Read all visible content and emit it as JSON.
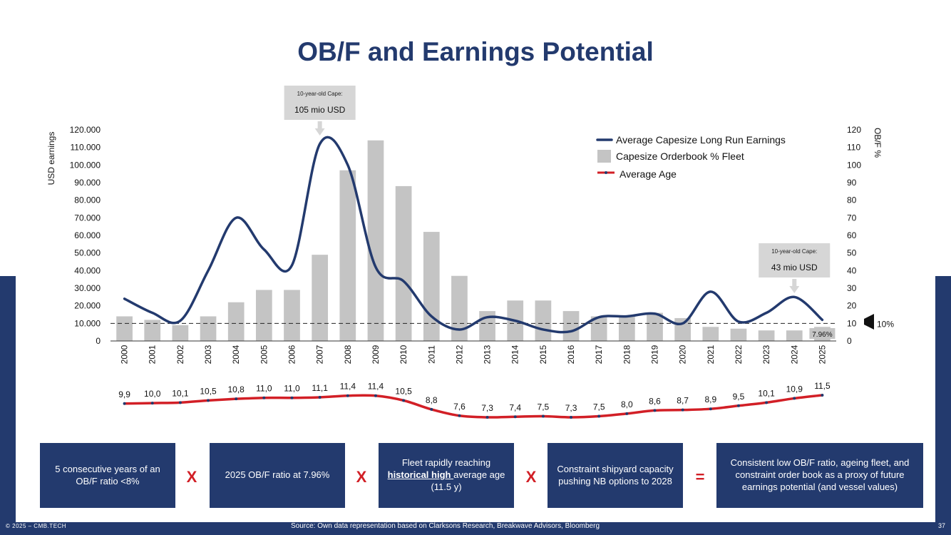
{
  "title": "OB/F and Earnings Potential",
  "colors": {
    "navy": "#233a6e",
    "bar": "#c4c4c4",
    "red": "#d21f26"
  },
  "chart_data": {
    "type": "bar+line",
    "categories": [
      "2000",
      "2001",
      "2002",
      "2003",
      "2004",
      "2005",
      "2006",
      "2007",
      "2008",
      "2009",
      "2010",
      "2011",
      "2012",
      "2013",
      "2014",
      "2015",
      "2016",
      "2017",
      "2018",
      "2019",
      "2020",
      "2021",
      "2022",
      "2023",
      "2024",
      "2025"
    ],
    "series": [
      {
        "name": "Capesize Orderbook % Fleet",
        "axis": "right",
        "values": [
          14,
          12,
          9,
          14,
          22,
          29,
          29,
          49,
          97,
          114,
          88,
          62,
          37,
          17,
          23,
          23,
          17,
          14,
          14,
          16,
          13,
          8,
          7,
          6,
          6,
          8
        ]
      },
      {
        "name": "Average Capesize Long Run Earnings",
        "axis": "left",
        "values": [
          24000,
          16000,
          11500,
          40000,
          70000,
          52000,
          43000,
          112000,
          100000,
          42000,
          34000,
          14000,
          6500,
          13500,
          11500,
          6500,
          5500,
          13500,
          14000,
          15500,
          10000,
          28000,
          11000,
          16000,
          25000,
          12000
        ]
      },
      {
        "name": "Average Age",
        "axis": "none",
        "values": [
          9.9,
          10.0,
          10.1,
          10.5,
          10.8,
          11.0,
          11.0,
          11.1,
          11.4,
          11.4,
          10.5,
          8.8,
          7.6,
          7.3,
          7.4,
          7.5,
          7.3,
          7.5,
          8.0,
          8.6,
          8.7,
          8.9,
          9.5,
          10.1,
          10.9,
          11.5
        ],
        "labels": [
          "9,9",
          "10,0",
          "10,1",
          "10,5",
          "10,8",
          "11,0",
          "11,0",
          "11,1",
          "11,4",
          "11,4",
          "10,5",
          "8,8",
          "7,6",
          "7,3",
          "7,4",
          "7,5",
          "7,3",
          "7,5",
          "8,0",
          "8,6",
          "8,7",
          "8,9",
          "9,5",
          "10,1",
          "10,9",
          "11,5"
        ]
      }
    ],
    "ylabel": "USD earnings",
    "y2label": "OB/F %",
    "ylim": [
      0,
      120000
    ],
    "y2lim": [
      0,
      120
    ],
    "y_ticks": [
      "0",
      "10.000",
      "20.000",
      "30.000",
      "40.000",
      "50.000",
      "60.000",
      "70.000",
      "80.000",
      "90.000",
      "100.000",
      "110.000",
      "120.000"
    ],
    "y2_ticks": [
      "0",
      "10",
      "20",
      "30",
      "40",
      "50",
      "60",
      "70",
      "80",
      "90",
      "100",
      "110",
      "120"
    ],
    "reference_line": {
      "value": 10,
      "axis": "right",
      "label": "10%"
    },
    "bar_data_label": {
      "category": "2025",
      "text": "7.96%"
    },
    "legend": [
      {
        "name": "Average Capesize Long Run Earnings",
        "style": "line-navy"
      },
      {
        "name": "Capesize Orderbook % Fleet",
        "style": "bar-grey"
      },
      {
        "name": "Average Age",
        "style": "line-red"
      }
    ],
    "annotations": [
      {
        "category": "2007",
        "line1": "10-year-old Cape:",
        "line2": "105 mio USD"
      },
      {
        "category": "2024",
        "line1": "10-year-old Cape:",
        "line2": "43 mio USD"
      }
    ]
  },
  "boxes": [
    {
      "text": "5 consecutive years of an OB/F ratio <8%"
    },
    {
      "text": "2025 OB/F ratio at 7.96%"
    },
    {
      "pre": "Fleet rapidly reaching ",
      "highlight": "historical high ",
      "post": "average age (11.5 y)"
    },
    {
      "text": "Constraint shipyard capacity pushing NB options to 2028"
    },
    {
      "text": "Consistent low OB/F ratio, ageing fleet, and constraint order book as a proxy of future earnings potential (and vessel values)"
    }
  ],
  "operators": [
    "X",
    "X",
    "X",
    "="
  ],
  "footer": {
    "copyright": "© 2025 – CMB.TECH",
    "source": "Source:  Own data representation based on Clarksons Research, Breakwave Advisors, Bloomberg",
    "page": "37"
  }
}
